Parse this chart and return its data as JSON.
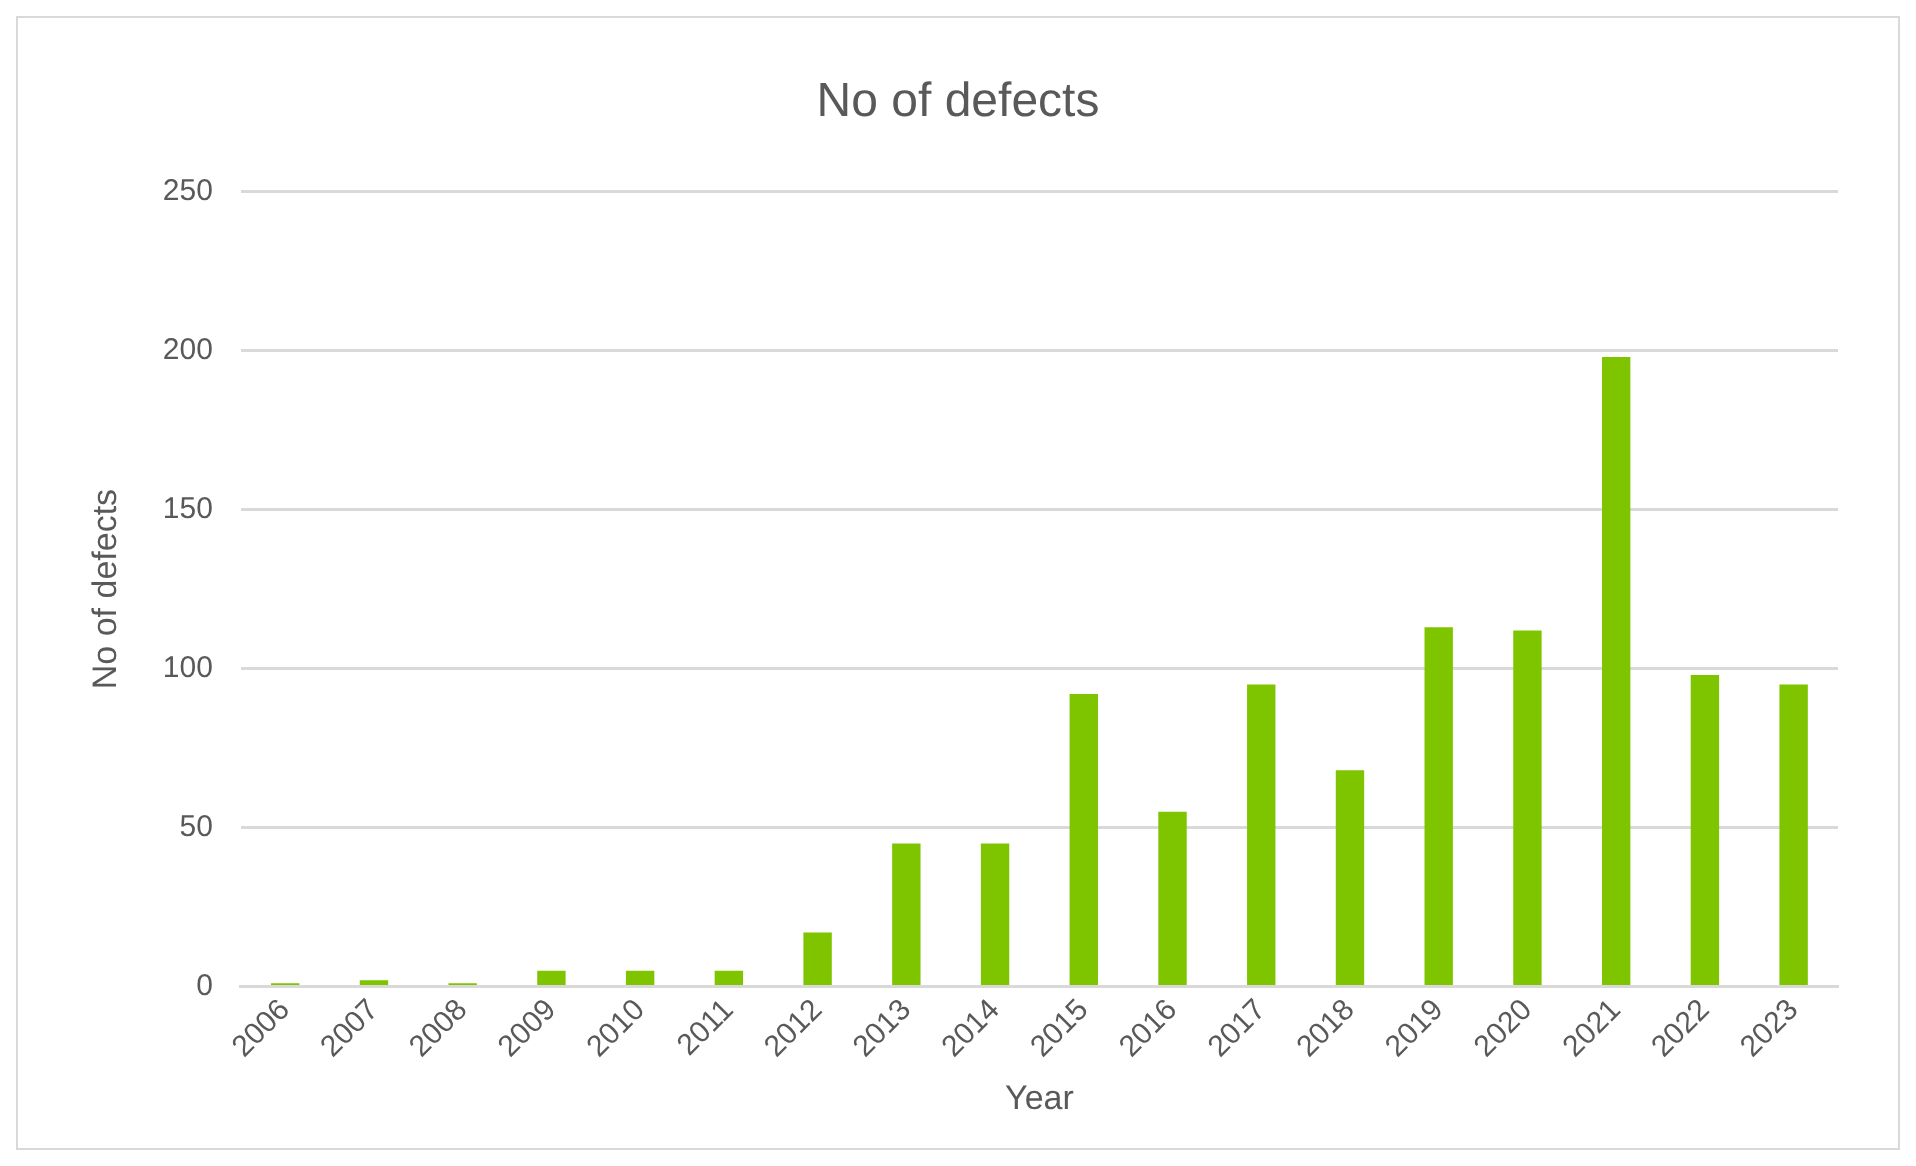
{
  "chart_data": {
    "type": "bar",
    "title": "No of defects",
    "xlabel": "Year",
    "ylabel": "No of defects",
    "categories": [
      "2006",
      "2007",
      "2008",
      "2009",
      "2010",
      "2011",
      "2012",
      "2013",
      "2014",
      "2015",
      "2016",
      "2017",
      "2018",
      "2019",
      "2020",
      "2021",
      "2022",
      "2023"
    ],
    "values": [
      1,
      2,
      1,
      5,
      5,
      5,
      17,
      45,
      45,
      92,
      55,
      95,
      68,
      113,
      112,
      198,
      98,
      95
    ],
    "color": "#7ec500",
    "ylim": [
      0,
      250
    ],
    "yticks": [
      0,
      50,
      100,
      150,
      200,
      250
    ],
    "grid": "y",
    "legend": false
  }
}
